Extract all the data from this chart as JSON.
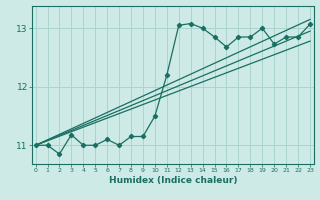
{
  "xlabel": "Humidex (Indice chaleur)",
  "bg_color": "#cdeae6",
  "grid_color": "#aad4cf",
  "line_color": "#1a6e62",
  "x_ticks": [
    0,
    1,
    2,
    3,
    4,
    5,
    6,
    7,
    8,
    9,
    10,
    11,
    12,
    13,
    14,
    15,
    16,
    17,
    18,
    19,
    20,
    21,
    22,
    23
  ],
  "y_ticks": [
    11,
    12,
    13
  ],
  "xlim": [
    -0.3,
    23.3
  ],
  "ylim": [
    10.68,
    13.38
  ],
  "curve1_x": [
    0,
    1,
    2,
    3,
    4,
    5,
    6,
    7,
    8,
    9,
    10,
    11,
    12,
    13,
    14,
    15,
    16,
    17,
    18,
    19,
    20,
    21,
    22,
    23
  ],
  "curve1_y": [
    11.0,
    11.0,
    10.85,
    11.18,
    11.0,
    11.0,
    11.1,
    11.0,
    11.15,
    11.15,
    11.5,
    12.2,
    13.05,
    13.08,
    13.0,
    12.85,
    12.68,
    12.85,
    12.85,
    13.0,
    12.73,
    12.85,
    12.85,
    13.07
  ],
  "line1_x": [
    0,
    23
  ],
  "line1_y": [
    11.0,
    13.15
  ],
  "line2_x": [
    0,
    23
  ],
  "line2_y": [
    11.0,
    12.95
  ],
  "line3_x": [
    0,
    23
  ],
  "line3_y": [
    11.0,
    12.78
  ]
}
